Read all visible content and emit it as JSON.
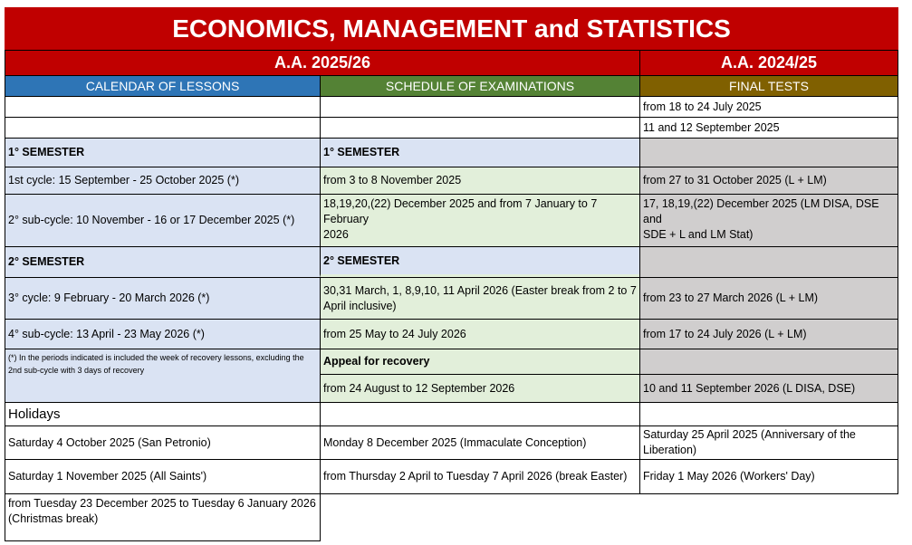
{
  "title": "ECONOMICS, MANAGEMENT and STATISTICS",
  "years": {
    "current": "A.A. 2025/26",
    "previous": "A.A. 2024/25"
  },
  "headers": {
    "lessons": "CALENDAR OF LESSONS",
    "exams": "SCHEDULE OF EXAMINATIONS",
    "final": "FINAL TESTS"
  },
  "final_top": [
    "from 18 to 24 July 2025",
    "11 and 12 September 2025"
  ],
  "sem1": {
    "lessons": "1° SEMESTER",
    "exams": "1° SEMESTER"
  },
  "row1": {
    "lessons": "1st cycle: 15 September - 25 October 2025 (*)",
    "exams": "from 3 to 8 November 2025",
    "final": "from 27 to 31 October 2025 (L + LM)"
  },
  "row2": {
    "lessons": "2° sub-cycle: 10 November - 16 or 17 December 2025 (*)",
    "exams_a": "18,19,20,(22) December 2025 and from 7 January to 7 February",
    "exams_b": "2026",
    "final_a": "17, 18,19,(22) December 2025 (LM DISA, DSE and",
    "final_b": "SDE + L and LM Stat)"
  },
  "sem2": {
    "lessons": "2° SEMESTER",
    "exams": "2° SEMESTER"
  },
  "row3": {
    "lessons": "3° cycle: 9 February - 20 March 2026 (*)",
    "exams": "30,31 March, 1, 8,9,10, 11 April 2026 (Easter break from 2 to 7 April inclusive)",
    "final": "from 23 to 27 March 2026 (L + LM)"
  },
  "row4": {
    "lessons": "4° sub-cycle: 13 April - 23 May 2026 (*)",
    "exams": "from 25 May to 24 July 2026",
    "final": "from 17 to 24 July 2026 (L + LM)"
  },
  "note": "(*) In the periods indicated is included the week of recovery lessons, excluding the 2nd sub-cycle with 3 days of recovery",
  "recovery": {
    "label": "Appeal for recovery",
    "exams": "from 24 August to 12 September 2026",
    "final": "10 and 11 September 2026 (L DISA, DSE)"
  },
  "holidays": {
    "label": "Holidays",
    "items": [
      [
        "Saturday 4 October 2025 (San Petronio)",
        "Monday 8 December 2025 (Immaculate Conception)",
        "Saturday 25 April 2025 (Anniversary of the Liberation)"
      ],
      [
        "Saturday 1 November 2025 (All Saints')",
        "from Thursday 2 April to Tuesday 7 April 2026 (break Easter)",
        "Friday 1 May 2026 (Workers' Day)"
      ],
      [
        "from Tuesday 23 December 2025 to Tuesday 6 January 2026 (Christmas break)"
      ]
    ]
  },
  "colors": {
    "title": "#c00000",
    "lessons": "#2e75b6",
    "exams": "#548235",
    "final": "#806000",
    "lessons_bg": "#dae3f3",
    "exams_bg": "#e2efda",
    "final_bg": "#d0cece"
  }
}
